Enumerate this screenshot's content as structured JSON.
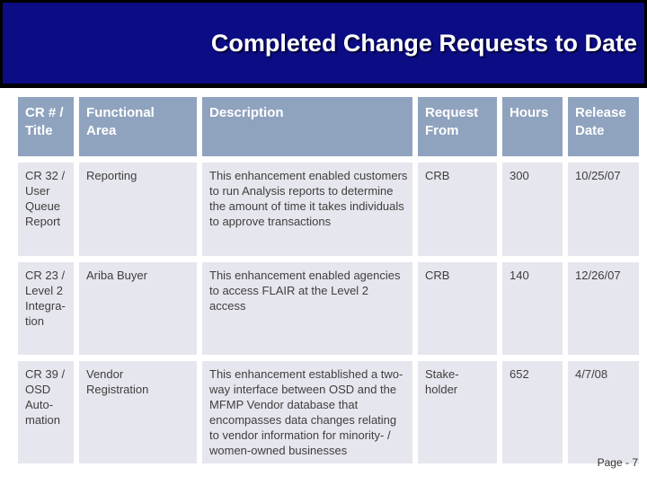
{
  "slide": {
    "title": "Completed Change Requests to Date",
    "page_label": "Page - 7",
    "colors": {
      "banner_bg": "#0c0c85",
      "banner_border": "#000000",
      "header_bg": "#8fa3be",
      "header_text": "#ffffff",
      "row_bg": "#e6e6ee",
      "body_text": "#3f3f3f",
      "page_bg": "#ffffff"
    }
  },
  "table": {
    "columns": [
      {
        "label": "CR # /\nTitle"
      },
      {
        "label": "Functional\nArea"
      },
      {
        "label": "Description"
      },
      {
        "label": "Request\nFrom"
      },
      {
        "label": "Hours"
      },
      {
        "label": "Release\nDate"
      }
    ],
    "rows": [
      {
        "cells": [
          "CR 32 /\nUser\nQueue\nReport",
          "Reporting",
          "This enhancement enabled customers\nto run Analysis reports to determine\nthe amount of time it takes individuals\nto approve transactions",
          "CRB",
          "300",
          "10/25/07"
        ]
      },
      {
        "cells": [
          "CR 23 /\nLevel 2\nIntegra-\ntion",
          "Ariba Buyer",
          "This enhancement enabled agencies\nto access FLAIR at the Level 2 access",
          "CRB",
          "140",
          "12/26/07"
        ]
      },
      {
        "cells": [
          "CR 39 /\nOSD\nAuto-\nmation",
          "Vendor\nRegistration",
          "This enhancement established a two-\nway interface between OSD and the\nMFMP Vendor database that\nencompasses data changes relating\nto vendor information for minority- /\nwomen-owned businesses",
          "Stake-\nholder",
          "652",
          "4/7/08"
        ]
      }
    ]
  }
}
